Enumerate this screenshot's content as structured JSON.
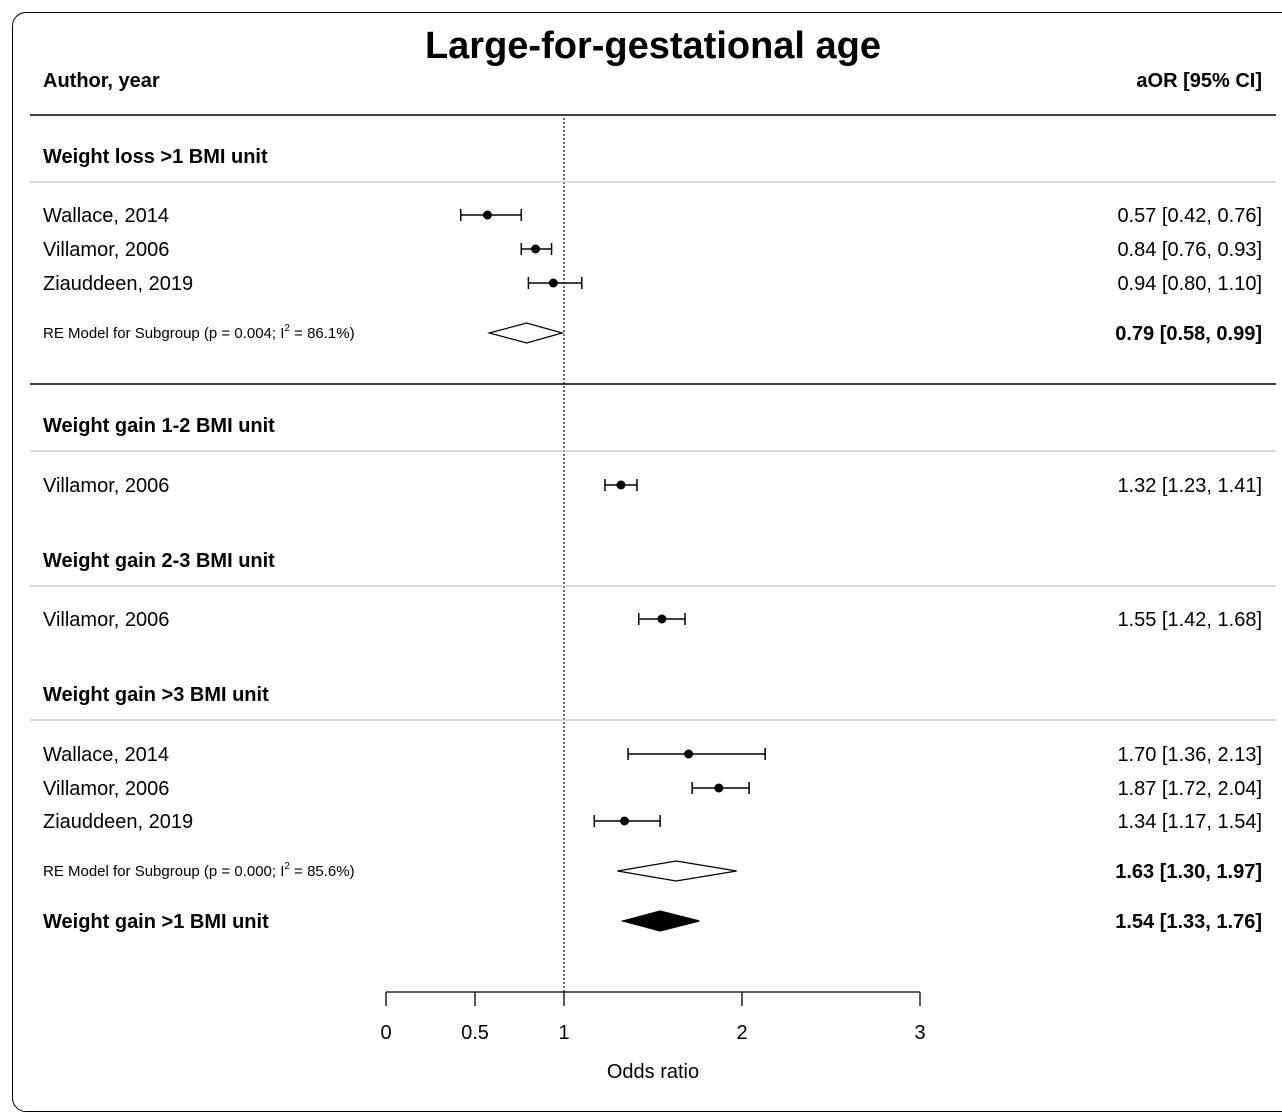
{
  "chart_data": {
    "type": "forest",
    "title": "Large-for-gestational age",
    "left_header": "Author, year",
    "right_header": "aOR [95% CI]",
    "xlabel": "Odds ratio",
    "xlim": [
      0,
      3
    ],
    "x_ticks": [
      0,
      0.5,
      1,
      2,
      3
    ],
    "x_tick_labels": [
      "0",
      "0.5",
      "1",
      "2",
      "3"
    ],
    "reference_line": 1,
    "groups": [
      {
        "heading": "Weight loss >1 BMI unit",
        "studies": [
          {
            "label": "Wallace, 2014",
            "est": 0.57,
            "lo": 0.42,
            "hi": 0.76,
            "text": "0.57 [0.42, 0.76]"
          },
          {
            "label": "Villamor, 2006",
            "est": 0.84,
            "lo": 0.76,
            "hi": 0.93,
            "text": "0.84 [0.76, 0.93]"
          },
          {
            "label": "Ziauddeen, 2019",
            "est": 0.94,
            "lo": 0.8,
            "hi": 1.1,
            "text": "0.94 [0.80, 1.10]"
          }
        ],
        "summary": {
          "label_main": "RE Model for Subgroup (p = 0.004; I",
          "label_sup": "2",
          "label_tail": " = 86.1%)",
          "est": 0.79,
          "lo": 0.58,
          "hi": 0.99,
          "text": "0.79 [0.58, 0.99]"
        }
      },
      {
        "heading": "Weight gain 1-2 BMI unit",
        "studies": [
          {
            "label": "Villamor, 2006",
            "est": 1.32,
            "lo": 1.23,
            "hi": 1.41,
            "text": "1.32 [1.23, 1.41]"
          }
        ]
      },
      {
        "heading": "Weight gain 2-3 BMI unit",
        "studies": [
          {
            "label": "Villamor, 2006",
            "est": 1.55,
            "lo": 1.42,
            "hi": 1.68,
            "text": "1.55 [1.42, 1.68]"
          }
        ]
      },
      {
        "heading": "Weight gain >3 BMI unit",
        "studies": [
          {
            "label": "Wallace, 2014",
            "est": 1.7,
            "lo": 1.36,
            "hi": 2.13,
            "text": "1.70 [1.36, 2.13]"
          },
          {
            "label": "Villamor, 2006",
            "est": 1.87,
            "lo": 1.72,
            "hi": 2.04,
            "text": "1.87 [1.72, 2.04]"
          },
          {
            "label": "Ziauddeen, 2019",
            "est": 1.34,
            "lo": 1.17,
            "hi": 1.54,
            "text": "1.34 [1.17, 1.54]"
          }
        ],
        "summary": {
          "label_main": "RE Model for Subgroup (p = 0.000; I",
          "label_sup": "2",
          "label_tail": " = 85.6%)",
          "est": 1.63,
          "lo": 1.3,
          "hi": 1.97,
          "text": "1.63 [1.30, 1.97]"
        }
      }
    ],
    "overall": {
      "label": "Weight gain >1 BMI unit",
      "est": 1.54,
      "lo": 1.33,
      "hi": 1.76,
      "text": "1.54 [1.33, 1.76]"
    }
  }
}
